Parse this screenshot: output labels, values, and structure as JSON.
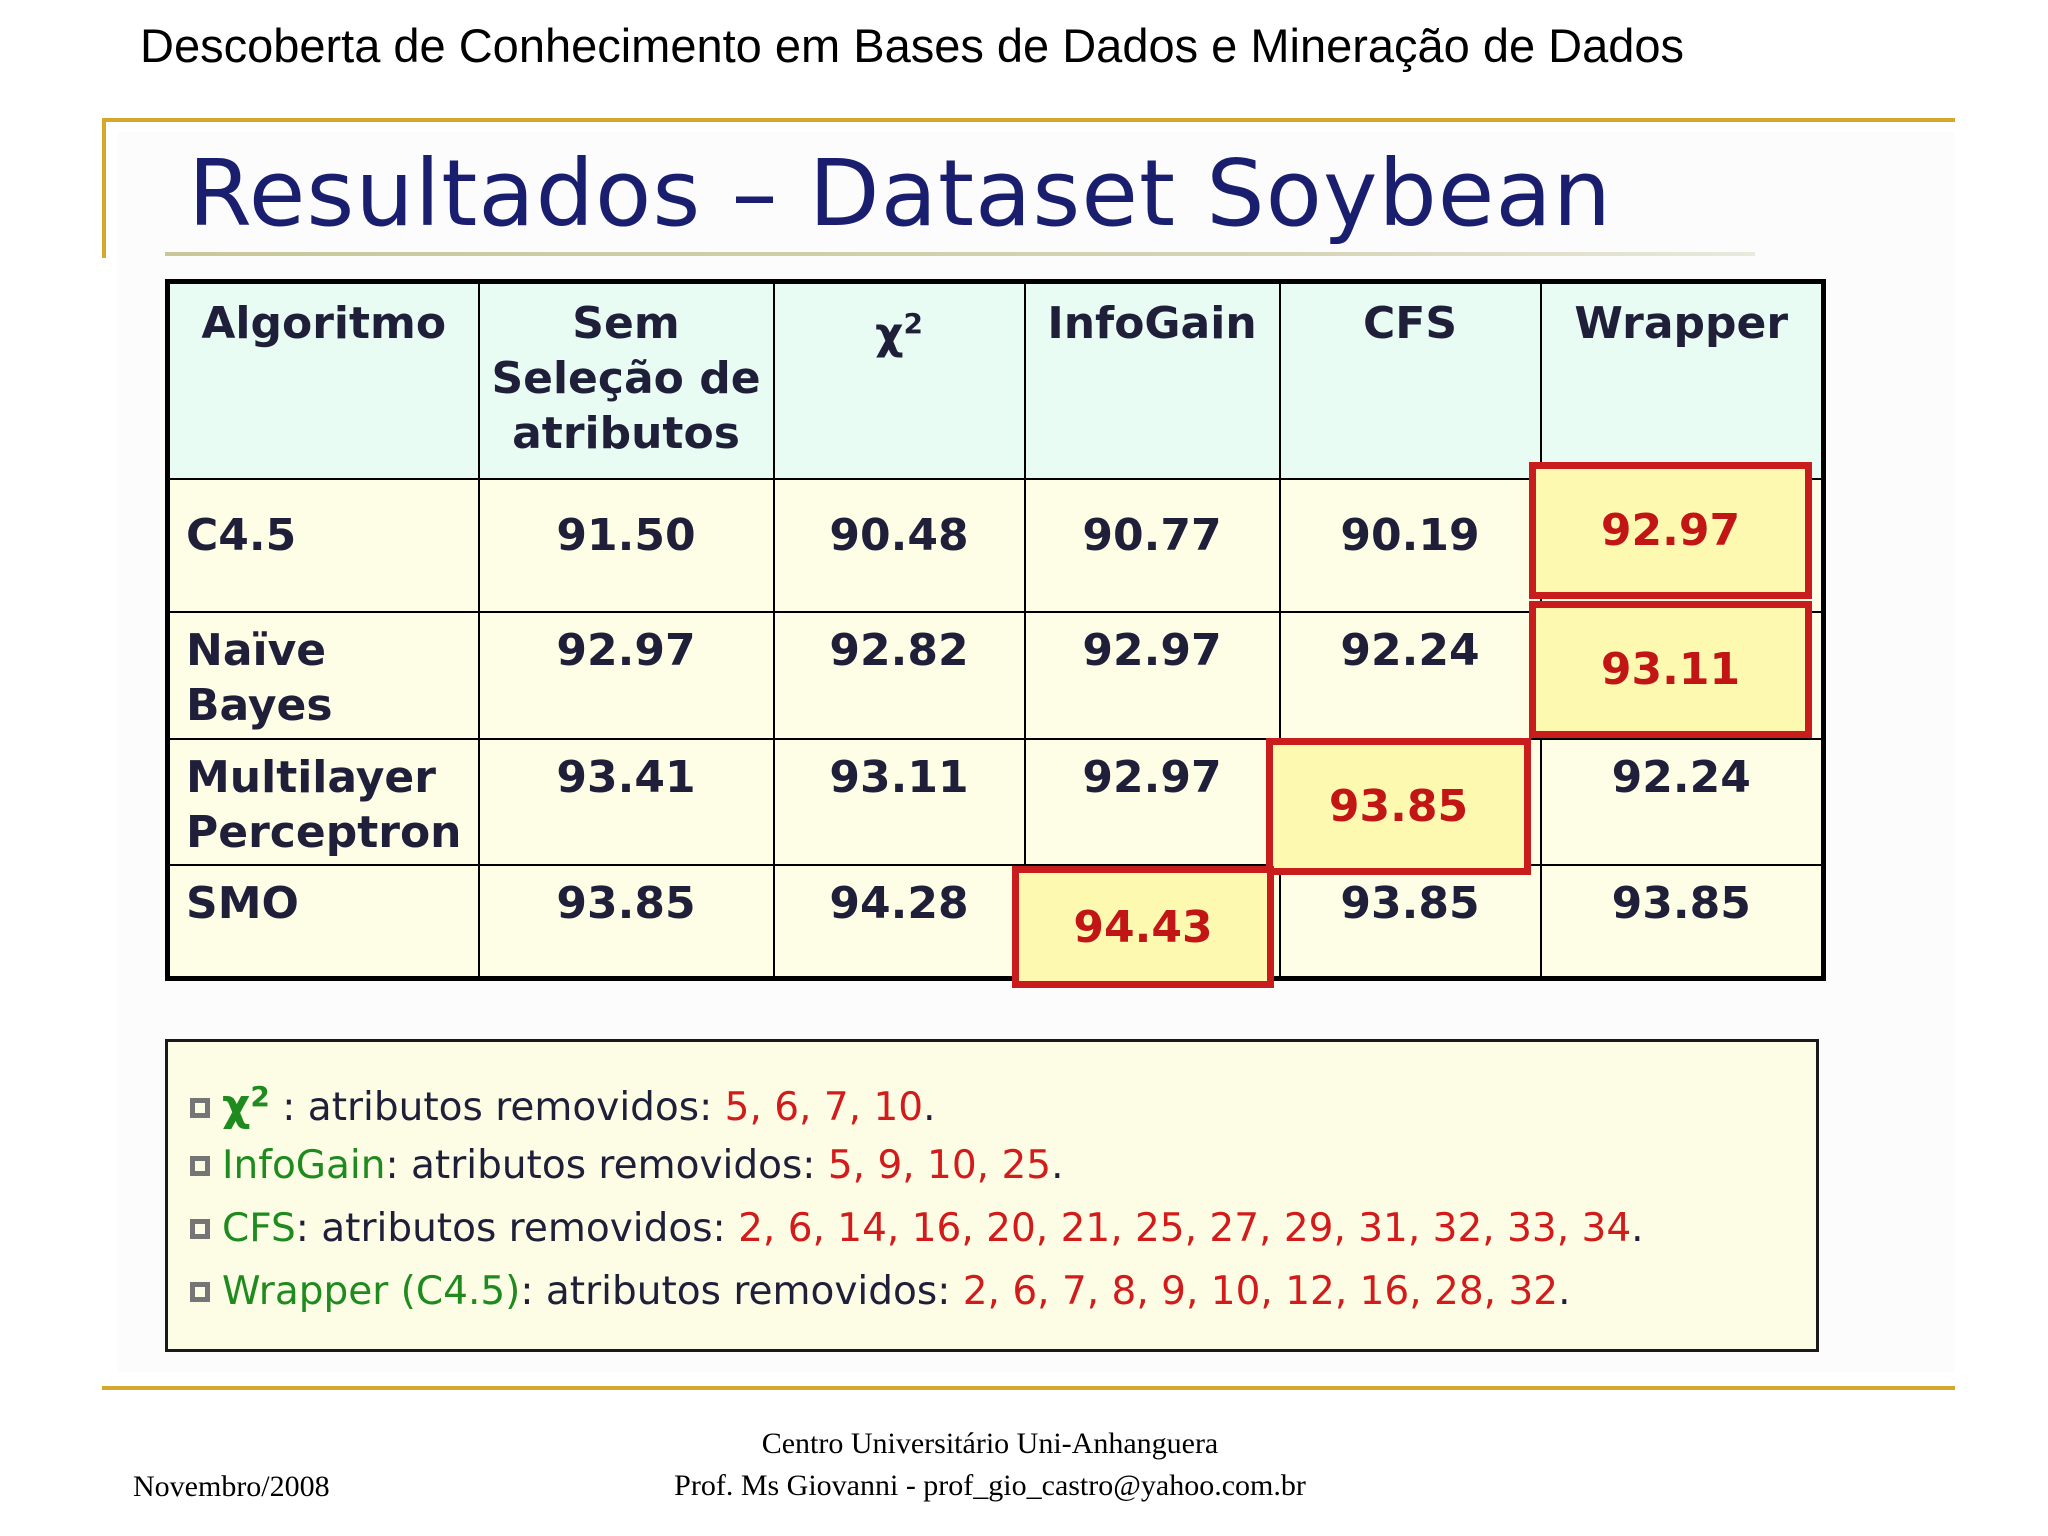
{
  "header": {
    "title": "Descoberta de Conhecimento em Bases de Dados e Mineração de Dados"
  },
  "slide": {
    "title": "Resultados – Dataset Soybean"
  },
  "table": {
    "headers": {
      "algoritmo": "Algoritmo",
      "sem_line1": "Sem",
      "sem_line2": "Seleção de",
      "sem_line3": "atributos",
      "chi": "χ",
      "chi_sup": "2",
      "infogain": "InfoGain",
      "cfs": "CFS",
      "wrapper": "Wrapper"
    },
    "rows": [
      {
        "algo_line1": "C4.5",
        "algo_line2": "",
        "values": [
          "91.50",
          "90.48",
          "90.77",
          "90.19",
          "92.97"
        ]
      },
      {
        "algo_line1": "Naïve",
        "algo_line2": "Bayes",
        "values": [
          "92.97",
          "92.82",
          "92.97",
          "92.24",
          "93.11"
        ]
      },
      {
        "algo_line1": "Multilayer",
        "algo_line2": "Perceptron",
        "values": [
          "93.41",
          "93.11",
          "92.97",
          "93.85",
          "92.24"
        ]
      },
      {
        "algo_line1": "SMO",
        "algo_line2": "",
        "values": [
          "93.85",
          "94.28",
          "94.43",
          "93.85",
          "93.85"
        ]
      }
    ],
    "highlight_color": "#c91c1c"
  },
  "notes": {
    "chi": {
      "label": "χ",
      "sup": "2",
      "text": " : atributos removidos: ",
      "values": "5, 6, 7, 10",
      "end": "."
    },
    "infogain": {
      "label": "InfoGain",
      "text": ": atributos removidos: ",
      "values": "5, 9, 10, 25",
      "end": "."
    },
    "cfs": {
      "label": "CFS",
      "text": ": atributos removidos: ",
      "values": "2, 6, 14, 16, 20, 21, 25, 27, 29, 31, 32, 33, 34",
      "end": "."
    },
    "wrapper": {
      "label": "Wrapper (C4.5)",
      "text": ": atributos removidos: ",
      "values": "2, 6, 7, 8, 9, 10, 12, 16, 28, 32",
      "end": "."
    }
  },
  "footer": {
    "date": "Novembro/2008",
    "institution": "Centro Universitário Uni-Anhanguera",
    "professor": "Prof. Ms Giovanni - prof_gio_castro@yahoo.com.br"
  }
}
